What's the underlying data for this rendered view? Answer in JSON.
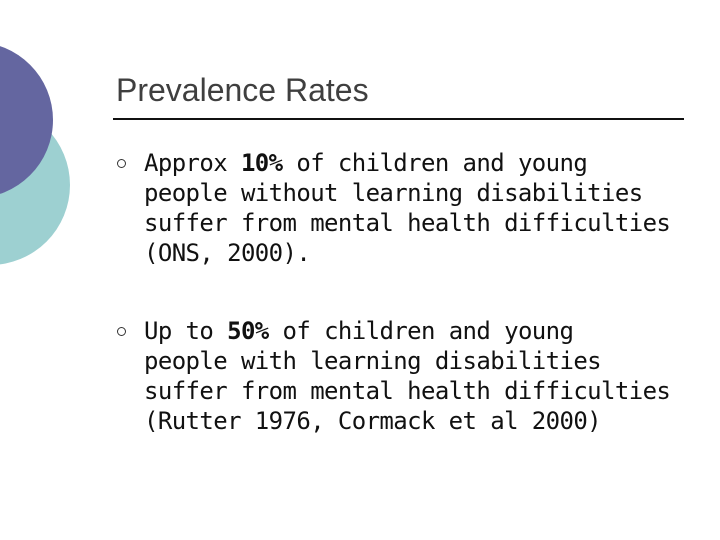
{
  "slide": {
    "title": "Prevalence Rates",
    "colors": {
      "purple_circle": "#6466a0",
      "teal_circle": "#9dd0d1",
      "title_text": "#3f3f3f",
      "body_text": "#111111"
    },
    "bullets": [
      {
        "lines": [
          {
            "pre": "Approx ",
            "stat": "10%",
            "post": " of children and young"
          },
          {
            "pre": "people without learning disabilities",
            "stat": "",
            "post": ""
          },
          {
            "pre": "suffer from mental health difficulties",
            "stat": "",
            "post": ""
          },
          {
            "pre": "(ONS, 2000).",
            "stat": "",
            "post": ""
          }
        ]
      },
      {
        "lines": [
          {
            "pre": "Up to ",
            "stat": "50%",
            "post": " of children and young"
          },
          {
            "pre": "people with learning disabilities",
            "stat": "",
            "post": ""
          },
          {
            "pre": "suffer from mental health difficulties",
            "stat": "",
            "post": ""
          },
          {
            "pre": "(Rutter 1976, Cormack et al 2000)",
            "stat": "",
            "post": ""
          }
        ]
      }
    ]
  }
}
